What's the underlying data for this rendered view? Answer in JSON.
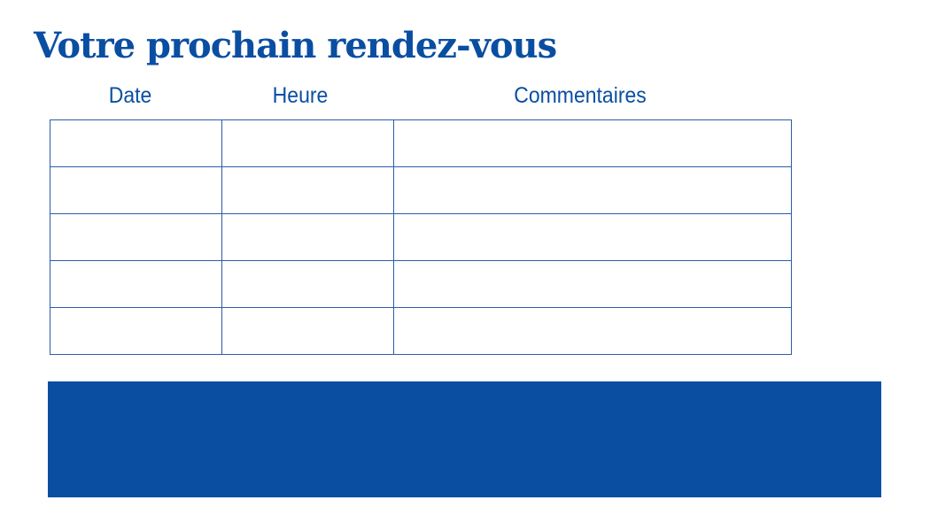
{
  "title": "Votre prochain rendez-vous",
  "table": {
    "columns": [
      "Date",
      "Heure",
      "Commentaires"
    ],
    "rows": [
      [
        "",
        "",
        ""
      ],
      [
        "",
        "",
        ""
      ],
      [
        "",
        "",
        ""
      ],
      [
        "",
        "",
        ""
      ],
      [
        "",
        "",
        ""
      ]
    ]
  },
  "colors": {
    "accent": "#0a4ea2"
  }
}
